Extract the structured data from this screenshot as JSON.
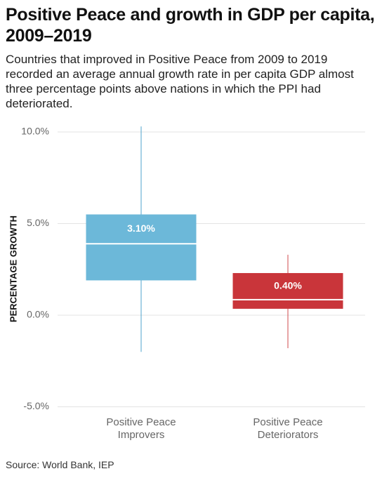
{
  "chart_data": {
    "type": "box",
    "title": "Positive Peace and growth in GDP per capita, 2009–2019",
    "subtitle": "Countries that improved in Positive Peace from 2009 to 2019 recorded an average annual growth rate in per capita GDP almost three percentage points above nations in which the PPI had deteriorated.",
    "y_label": "PERCENTAGE GROWTH",
    "categories": [
      "Positive Peace Improvers",
      "Positive Peace Deteriorators"
    ],
    "boxes": [
      {
        "whisker_low": -2.0,
        "q1": 1.9,
        "median": 3.9,
        "q3": 5.5,
        "whisker_high": 10.3,
        "label": "3.10%",
        "color": "#6cb8d9",
        "line_color": "#4fa3cc"
      },
      {
        "whisker_low": -1.8,
        "q1": 0.35,
        "median": 0.85,
        "q3": 2.3,
        "whisker_high": 3.3,
        "label": "0.40%",
        "color": "#c9353a",
        "line_color": "#d04a4e"
      }
    ],
    "ylim": [
      -5.3,
      10.3
    ],
    "yticks": [
      {
        "value": -5,
        "label": "-5.0%"
      },
      {
        "value": 0,
        "label": "0.0%"
      },
      {
        "value": 5,
        "label": "5.0%"
      },
      {
        "value": 10,
        "label": "10.0%"
      }
    ],
    "grid": true,
    "source": "Source: World Bank, IEP"
  }
}
